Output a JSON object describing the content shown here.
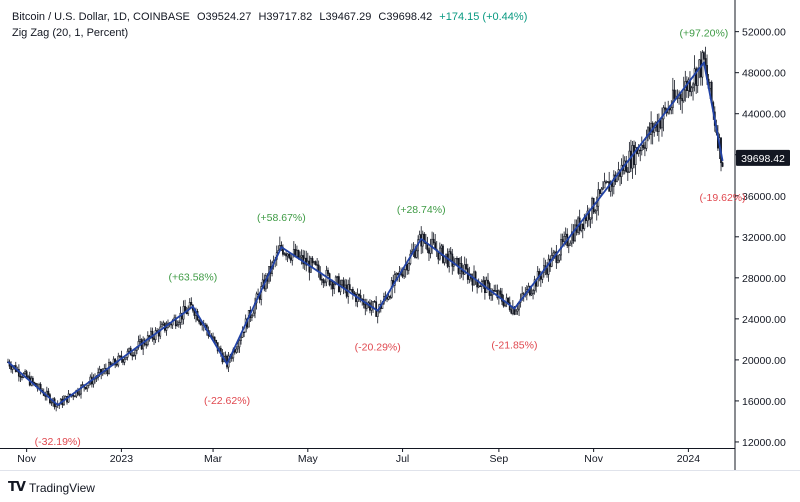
{
  "header": {
    "symbol": "Bitcoin / U.S. Dollar, 1D, COINBASE",
    "open": "O39524.27",
    "high": "H39717.82",
    "low": "L39467.29",
    "close": "C39698.42",
    "change": "+174.15 (+0.44%)",
    "indicator": "Zig Zag (20, 1, Percent)"
  },
  "footer": {
    "brand": "TradingView",
    "logo_mark": "TV"
  },
  "colors": {
    "background": "#ffffff",
    "candle": "#131722",
    "zigzag": "#2142a6",
    "positive": "#3f9b45",
    "negative": "#e0484f",
    "price_badge": "#131722",
    "axis": "#131722",
    "axis_text": "#131722"
  },
  "chart_data": {
    "type": "candlestick",
    "title": "Bitcoin / U.S. Dollar, 1D, COINBASE",
    "last_price": 39698.42,
    "last_price_label": "39698.42",
    "x_time_range": [
      "2022-10-20",
      "2024-01-31"
    ],
    "y_range": [
      11800,
      54500
    ],
    "y_ticks": [
      {
        "value": 12000,
        "label": "12000.00"
      },
      {
        "value": 16000,
        "label": "16000.00"
      },
      {
        "value": 20000,
        "label": "20000.00"
      },
      {
        "value": 24000,
        "label": "24000.00"
      },
      {
        "value": 28000,
        "label": "28000.00"
      },
      {
        "value": 32000,
        "label": "32000.00"
      },
      {
        "value": 36000,
        "label": "36000.00"
      },
      {
        "value": 40000,
        "label": "40000.00"
      },
      {
        "value": 44000,
        "label": "44000.00"
      },
      {
        "value": 48000,
        "label": "48000.00"
      },
      {
        "value": 52000,
        "label": "52000.00"
      }
    ],
    "x_ticks": [
      {
        "date": "2022-11-01",
        "label": "Nov"
      },
      {
        "date": "2023-01-01",
        "label": "2023"
      },
      {
        "date": "2023-03-01",
        "label": "Mar"
      },
      {
        "date": "2023-05-01",
        "label": "May"
      },
      {
        "date": "2023-07-01",
        "label": "Jul"
      },
      {
        "date": "2023-09-01",
        "label": "Sep"
      },
      {
        "date": "2023-11-01",
        "label": "Nov"
      },
      {
        "date": "2024-01-01",
        "label": "2024"
      }
    ],
    "zigzag": [
      {
        "date": "2022-10-20",
        "price": 19800
      },
      {
        "date": "2022-11-21",
        "price": 15600,
        "label": "(-32.19%)"
      },
      {
        "date": "2023-02-16",
        "price": 25200,
        "label": "(+63.58%)"
      },
      {
        "date": "2023-03-10",
        "price": 19600,
        "label": "(-22.62%)"
      },
      {
        "date": "2023-04-14",
        "price": 31000,
        "label": "(+58.67%)"
      },
      {
        "date": "2023-06-15",
        "price": 24800,
        "label": "(-20.29%)"
      },
      {
        "date": "2023-07-13",
        "price": 31800,
        "label": "(+28.74%)"
      },
      {
        "date": "2023-09-11",
        "price": 25000,
        "label": "(-21.85%)"
      },
      {
        "date": "2024-01-11",
        "price": 49000,
        "label": "(+97.20%)"
      },
      {
        "date": "2024-01-23",
        "price": 39400,
        "label": "(-19.62%)"
      }
    ]
  }
}
